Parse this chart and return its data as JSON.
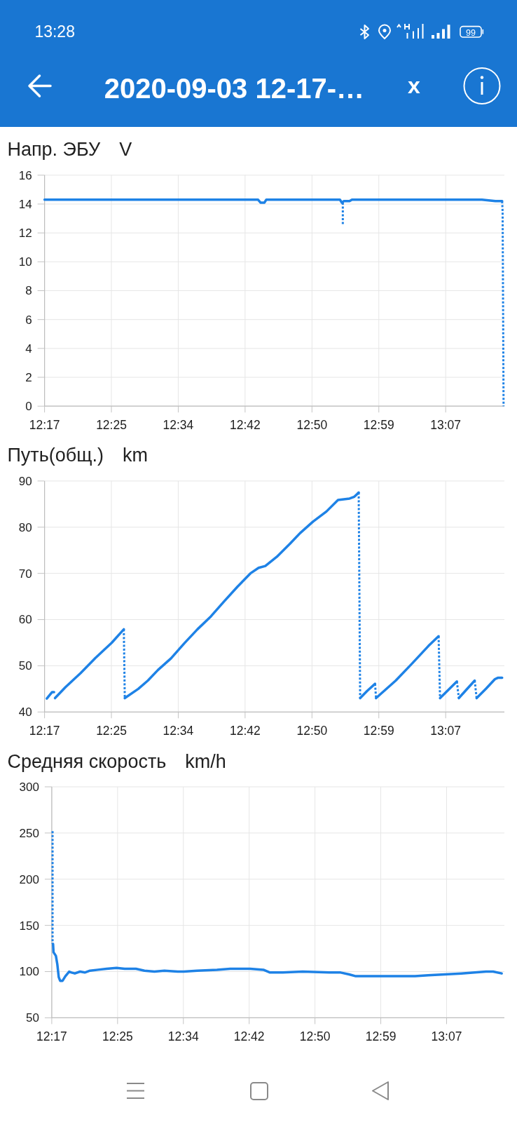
{
  "chart_data": [
    {
      "type": "line",
      "title": "Напр. ЭБУ",
      "ylabel": "V",
      "annotations": [
        "2020-09-03 12-17-…",
        "x",
        "13:28",
        "99"
      ],
      "xlim": [
        12.2833,
        13.2387
      ],
      "xticks": [
        {
          "value": 12.2833,
          "label": "12:17"
        },
        {
          "value": 12.4222,
          "label": "12:25"
        },
        {
          "value": 12.5611,
          "label": "12:34"
        },
        {
          "value": 12.7,
          "label": "12:42"
        },
        {
          "value": 12.8389,
          "label": "12:50"
        },
        {
          "value": 12.9778,
          "label": "12:59"
        },
        {
          "value": 13.1167,
          "label": "13:07"
        }
      ],
      "ylim": [
        0,
        16
      ],
      "yticks": [
        0,
        2,
        4,
        6,
        8,
        10,
        12,
        14,
        16
      ],
      "grid": true,
      "series": [
        {
          "color": "#1e82e6",
          "line_style": "solid",
          "x": [
            12.2833,
            12.342,
            12.442,
            12.542,
            12.642,
            12.727,
            12.732,
            12.74,
            12.744,
            12.842,
            12.897,
            12.901,
            12.905,
            12.91,
            12.917,
            12.922,
            12.992,
            13.092,
            13.192,
            13.22,
            13.234
          ],
          "values": [
            14.3,
            14.3,
            14.3,
            14.3,
            14.3,
            14.3,
            14.1,
            14.1,
            14.3,
            14.3,
            14.3,
            14.1,
            14.2,
            14.2,
            14.2,
            14.3,
            14.3,
            14.3,
            14.3,
            14.2,
            14.2
          ]
        },
        {
          "color": "#1e82e6",
          "line_style": "dotted",
          "x": [
            12.903,
            12.903
          ],
          "values": [
            14.1,
            12.6
          ]
        },
        {
          "color": "#1e82e6",
          "line_style": "dotted",
          "x": [
            13.234,
            13.235,
            13.237
          ],
          "values": [
            14.2,
            13.5,
            0
          ]
        }
      ]
    },
    {
      "type": "line",
      "title": "Путь(общ.)",
      "ylabel": "km",
      "xlim": [
        12.2833,
        13.2387
      ],
      "xticks": [
        {
          "value": 12.2833,
          "label": "12:17"
        },
        {
          "value": 12.4222,
          "label": "12:25"
        },
        {
          "value": 12.5611,
          "label": "12:34"
        },
        {
          "value": 12.7,
          "label": "12:42"
        },
        {
          "value": 12.8389,
          "label": "12:50"
        },
        {
          "value": 12.9778,
          "label": "12:59"
        },
        {
          "value": 13.1167,
          "label": "13:07"
        }
      ],
      "ylim": [
        40,
        90
      ],
      "yticks": [
        40,
        50,
        60,
        70,
        80,
        90
      ],
      "grid": true,
      "series": [
        {
          "color": "#1e82e6",
          "line_style": "solid",
          "x": [
            12.288,
            12.299,
            12.303
          ],
          "values": [
            42.9,
            44.3,
            44.3
          ]
        },
        {
          "color": "#1e82e6",
          "line_style": "solid",
          "x": [
            12.305,
            12.327,
            12.358,
            12.389,
            12.423,
            12.448
          ],
          "values": [
            43.0,
            45.4,
            48.4,
            51.7,
            55.0,
            57.9
          ]
        },
        {
          "color": "#1e82e6",
          "line_style": "dotted",
          "x": [
            12.448,
            12.45
          ],
          "values": [
            57.9,
            43.0
          ]
        },
        {
          "color": "#1e82e6",
          "line_style": "solid",
          "x": [
            12.45,
            12.478,
            12.498,
            12.519,
            12.546,
            12.574,
            12.601,
            12.629,
            12.656,
            12.684,
            12.711,
            12.728,
            12.742,
            12.766,
            12.793,
            12.814,
            12.841,
            12.869,
            12.893,
            12.917,
            12.927,
            12.936
          ],
          "values": [
            43.0,
            45.0,
            46.8,
            49.1,
            51.6,
            54.9,
            57.9,
            60.7,
            63.9,
            67.1,
            70.0,
            71.2,
            71.6,
            73.6,
            76.4,
            78.7,
            81.2,
            83.4,
            85.9,
            86.2,
            86.6,
            87.5
          ]
        },
        {
          "color": "#1e82e6",
          "line_style": "dotted",
          "x": [
            12.936,
            12.939
          ],
          "values": [
            87.5,
            43.0
          ]
        },
        {
          "color": "#1e82e6",
          "line_style": "solid",
          "x": [
            12.939,
            12.954,
            12.97
          ],
          "values": [
            43.0,
            44.6,
            46.1
          ]
        },
        {
          "color": "#1e82e6",
          "line_style": "dotted",
          "x": [
            12.97,
            12.972
          ],
          "values": [
            46.1,
            43.0
          ]
        },
        {
          "color": "#1e82e6",
          "line_style": "solid",
          "x": [
            12.972,
            13.013,
            13.047,
            13.081,
            13.102
          ],
          "values": [
            43.0,
            46.8,
            50.5,
            54.3,
            56.4
          ]
        },
        {
          "color": "#1e82e6",
          "line_style": "dotted",
          "x": [
            13.102,
            13.105
          ],
          "values": [
            56.4,
            43.0
          ]
        },
        {
          "color": "#1e82e6",
          "line_style": "solid",
          "x": [
            13.105,
            13.14
          ],
          "values": [
            43.0,
            46.6
          ]
        },
        {
          "color": "#1e82e6",
          "line_style": "dotted",
          "x": [
            13.14,
            13.144
          ],
          "values": [
            46.6,
            43.0
          ]
        },
        {
          "color": "#1e82e6",
          "line_style": "solid",
          "x": [
            13.144,
            13.177
          ],
          "values": [
            43.0,
            46.8
          ]
        },
        {
          "color": "#1e82e6",
          "line_style": "dotted",
          "x": [
            13.177,
            13.181
          ],
          "values": [
            46.8,
            43.0
          ]
        },
        {
          "color": "#1e82e6",
          "line_style": "solid",
          "x": [
            13.181,
            13.201,
            13.219,
            13.225,
            13.234
          ],
          "values": [
            43.0,
            45.1,
            47.1,
            47.4,
            47.4
          ]
        }
      ]
    },
    {
      "type": "line",
      "title": "Средняя скорость",
      "ylabel": "km/h",
      "xlim": [
        12.2833,
        13.2387
      ],
      "xticks": [
        {
          "value": 12.2833,
          "label": "12:17"
        },
        {
          "value": 12.4222,
          "label": "12:25"
        },
        {
          "value": 12.5611,
          "label": "12:34"
        },
        {
          "value": 12.7,
          "label": "12:42"
        },
        {
          "value": 12.8389,
          "label": "12:50"
        },
        {
          "value": 12.9778,
          "label": "12:59"
        },
        {
          "value": 13.1167,
          "label": "13:07"
        }
      ],
      "ylim": [
        50,
        300
      ],
      "yticks": [
        50,
        100,
        150,
        200,
        250,
        300
      ],
      "grid": true,
      "series": [
        {
          "color": "#1e82e6",
          "line_style": "dotted",
          "x": [
            12.285,
            12.285
          ],
          "values": [
            252,
            130
          ]
        },
        {
          "color": "#1e82e6",
          "line_style": "solid",
          "x": [
            12.286,
            12.287,
            12.292,
            12.295,
            12.298,
            12.301,
            12.306,
            12.312,
            12.32,
            12.325,
            12.332,
            12.343,
            12.353,
            12.364,
            12.381,
            12.399,
            12.42,
            12.437,
            12.461,
            12.479,
            12.5,
            12.521,
            12.549,
            12.562,
            12.59,
            12.632,
            12.66,
            12.702,
            12.73,
            12.744,
            12.771,
            12.813,
            12.869,
            12.893,
            12.911,
            12.925,
            12.953,
            13.05,
            13.078,
            13.148,
            13.176,
            13.2,
            13.215,
            13.233
          ],
          "values": [
            130,
            121,
            117,
            108,
            94,
            90,
            90,
            95,
            100,
            99,
            98,
            100,
            99,
            101,
            102,
            103,
            104,
            103,
            103,
            101,
            100,
            101,
            100,
            100,
            101,
            102,
            103,
            103,
            102,
            99,
            99,
            100,
            99,
            99,
            97,
            95,
            95,
            95,
            96,
            98,
            99,
            100,
            100,
            98
          ]
        }
      ]
    }
  ]
}
